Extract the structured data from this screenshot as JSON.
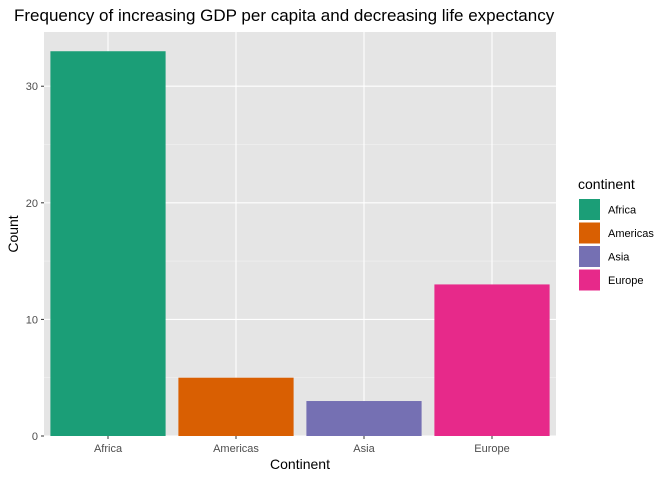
{
  "chart_data": {
    "type": "bar",
    "title": "Frequency of increasing GDP per capita and decreasing life expectancy",
    "xlabel": "Continent",
    "ylabel": "Count",
    "categories": [
      "Africa",
      "Americas",
      "Asia",
      "Europe"
    ],
    "values": [
      33,
      5,
      3,
      13
    ],
    "colors": [
      "#1b9e77",
      "#d95f02",
      "#7570b3",
      "#e7298a"
    ],
    "ylim": [
      0,
      34.65
    ],
    "yticks": [
      0,
      10,
      20,
      30
    ],
    "grid": true,
    "panel_background": "#e5e5e5",
    "legend": {
      "title": "continent",
      "position": "right",
      "entries": [
        "Africa",
        "Americas",
        "Asia",
        "Europe"
      ]
    }
  }
}
